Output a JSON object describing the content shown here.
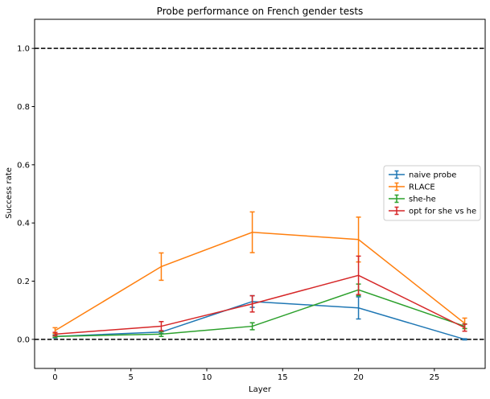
{
  "chart_data": {
    "type": "line",
    "title": "Probe performance on French gender tests",
    "xlabel": "Layer",
    "ylabel": "Success rate",
    "xlim": [
      -1.35,
      28.35
    ],
    "ylim": [
      -0.1,
      1.1
    ],
    "xticks": [
      0,
      5,
      10,
      15,
      20,
      25
    ],
    "yticks": [
      0.0,
      0.2,
      0.4,
      0.6,
      0.8,
      1.0
    ],
    "xtick_labels": [
      "0",
      "5",
      "10",
      "15",
      "20",
      "25"
    ],
    "ytick_labels": [
      "0.0",
      "0.2",
      "0.4",
      "0.6",
      "0.8",
      "1.0"
    ],
    "reference_lines": [
      0.0,
      1.0
    ],
    "grid": false,
    "legend_position": "center-right",
    "x": [
      0,
      7,
      13,
      20,
      27
    ],
    "series": [
      {
        "name": "naive probe",
        "color": "#1f77b4",
        "values": [
          0.01,
          0.025,
          0.13,
          0.108,
          0.0
        ],
        "errors": [
          0.005,
          0.005,
          0.02,
          0.038,
          0.002
        ]
      },
      {
        "name": "RLACE",
        "color": "#ff7f0e",
        "values": [
          0.03,
          0.25,
          0.368,
          0.343,
          0.055
        ],
        "errors": [
          0.01,
          0.047,
          0.07,
          0.077,
          0.018
        ]
      },
      {
        "name": "she-he",
        "color": "#2ca02c",
        "values": [
          0.01,
          0.018,
          0.045,
          0.17,
          0.045
        ],
        "errors": [
          0.003,
          0.008,
          0.012,
          0.02,
          0.008
        ]
      },
      {
        "name": "opt for she vs he",
        "color": "#d62728",
        "values": [
          0.018,
          0.045,
          0.122,
          0.22,
          0.04
        ],
        "errors": [
          0.006,
          0.016,
          0.028,
          0.066,
          0.012
        ]
      }
    ]
  }
}
